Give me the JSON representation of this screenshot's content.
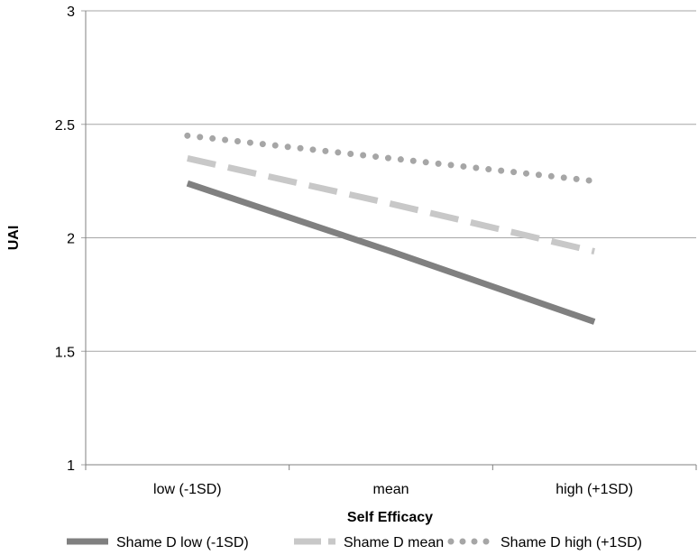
{
  "chart_data": {
    "type": "line",
    "title": "",
    "xlabel": "Self Efficacy",
    "ylabel": "UAI",
    "categories": [
      "low (-1SD)",
      "mean",
      "high (+1SD)"
    ],
    "ylim": [
      1,
      3
    ],
    "yticks": [
      1,
      1.5,
      2,
      2.5,
      3
    ],
    "ytick_labels": [
      "1",
      "1.5",
      "2",
      "2.5",
      "3"
    ],
    "grid": "horizontal",
    "legend_position": "bottom",
    "series": [
      {
        "name": "Shame D low (-1SD)",
        "values": [
          2.24,
          1.94,
          1.63
        ],
        "color": "#808080",
        "style": "solid"
      },
      {
        "name": "Shame D mean",
        "values": [
          2.35,
          2.15,
          1.94
        ],
        "color": "#c8c8c8",
        "style": "dashed"
      },
      {
        "name": "Shame D high (+1SD)",
        "values": [
          2.45,
          2.35,
          2.25
        ],
        "color": "#a6a6a6",
        "style": "dotted"
      }
    ]
  }
}
